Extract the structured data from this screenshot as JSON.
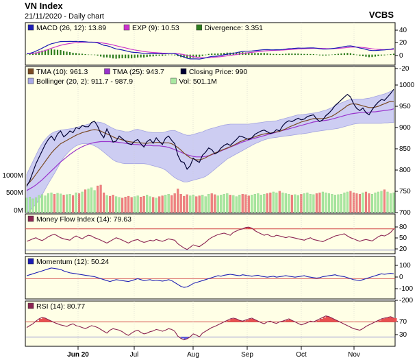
{
  "header": {
    "title": "VN Index",
    "subtitle": "21/11/2020 - Daily chart",
    "brand": "VCBS"
  },
  "chart_data": {
    "type": "line",
    "x_labels": [
      "Jun 20",
      "Jul",
      "Aug",
      "Sep",
      "Oct",
      "Nov"
    ],
    "panels": [
      {
        "id": "macd",
        "legend": [
          {
            "label": "MACD (26, 12): 13.89",
            "color": "#1c1cb4"
          },
          {
            "label": "EXP (9): 10.53",
            "color": "#cc33cc"
          },
          {
            "label": "Divergence: 3.351",
            "color": "#2e7d1e"
          }
        ],
        "yticks": [
          "40",
          "20",
          "0",
          "-20"
        ],
        "ylim": [
          -25,
          45
        ]
      },
      {
        "id": "price",
        "legend": [
          {
            "label": "TMA (10): 961.3",
            "color": "#7a4a22"
          },
          {
            "label": "TMA (25): 943.7",
            "color": "#9933cc"
          },
          {
            "label": "Closing Price: 990",
            "color": "#000033"
          },
          {
            "label": "Bollinger (20, 2): 911.7 - 987.9",
            "color": "#a8a8e8"
          },
          {
            "label": "Vol: 501.1M",
            "color": "#a8e8a0"
          }
        ],
        "yticks": [
          "1000",
          "950",
          "900",
          "850",
          "800",
          "750",
          "700"
        ],
        "vol_ticks": [
          "1000M",
          "500M",
          "0M"
        ],
        "ylim": [
          700,
          1000
        ],
        "close": [
          762,
          775,
          795,
          815,
          830,
          845,
          860,
          872,
          880,
          870,
          885,
          892,
          878,
          884,
          892,
          888,
          900,
          897,
          905,
          902,
          902,
          912,
          915,
          903,
          886,
          876,
          897,
          882,
          866,
          868,
          880,
          874,
          868,
          862,
          860,
          868,
          872,
          862,
          854,
          867,
          872,
          863,
          876,
          867,
          860,
          875,
          880,
          870,
          862,
          835,
          820,
          818,
          802,
          810,
          828,
          822,
          818,
          835,
          842,
          852,
          848,
          838,
          842,
          852,
          858,
          862,
          858,
          865,
          872,
          880,
          878,
          875,
          872,
          876,
          884,
          888,
          892,
          894,
          890,
          886,
          888,
          895,
          892,
          904,
          912,
          916,
          914,
          918,
          922,
          918,
          920,
          926,
          928,
          930,
          920,
          914,
          918,
          928,
          934,
          942,
          952,
          958,
          965,
          972,
          978,
          972,
          956,
          945,
          940,
          946,
          935,
          930,
          942,
          952,
          960,
          966,
          964,
          972,
          980,
          990
        ],
        "tma10": [
          765,
          772,
          780,
          790,
          800,
          810,
          820,
          830,
          840,
          848,
          855,
          862,
          866,
          870,
          874,
          878,
          882,
          885,
          888,
          890,
          892,
          894,
          895,
          894,
          892,
          888,
          885,
          882,
          878,
          875,
          873,
          871,
          869,
          867,
          866,
          865,
          864,
          864,
          863,
          863,
          864,
          864,
          865,
          865,
          864,
          864,
          864,
          862,
          858,
          853,
          847,
          840,
          834,
          829,
          826,
          824,
          824,
          826,
          829,
          833,
          837,
          840,
          843,
          846,
          849,
          852,
          855,
          858,
          862,
          866,
          869,
          872,
          874,
          876,
          878,
          881,
          883,
          885,
          886,
          887,
          888,
          890,
          891,
          894,
          897,
          901,
          904,
          907,
          910,
          913,
          915,
          917,
          919,
          921,
          921,
          921,
          921,
          922,
          924,
          927,
          931,
          936,
          941,
          946,
          952,
          955,
          956,
          955,
          953,
          951,
          949,
          947,
          947,
          948,
          950,
          953,
          956,
          959,
          962,
          961
        ],
        "tma25": [
          752,
          756,
          760,
          765,
          771,
          777,
          784,
          791,
          798,
          805,
          812,
          819,
          825,
          831,
          837,
          842,
          847,
          851,
          855,
          858,
          861,
          863,
          865,
          866,
          867,
          867,
          867,
          867,
          866,
          866,
          865,
          864,
          863,
          862,
          861,
          860,
          860,
          859,
          858,
          858,
          858,
          857,
          857,
          857,
          856,
          855,
          853,
          851,
          848,
          845,
          842,
          839,
          836,
          834,
          832,
          831,
          831,
          831,
          832,
          834,
          836,
          839,
          842,
          845,
          848,
          851,
          854,
          857,
          860,
          863,
          866,
          868,
          871,
          873,
          875,
          877,
          879,
          881,
          883,
          885,
          887,
          889,
          891,
          893,
          895,
          897,
          899,
          901,
          903,
          905,
          907,
          909,
          911,
          913,
          914,
          915,
          916,
          917,
          918,
          920,
          922,
          924,
          926,
          928,
          930,
          932,
          933,
          934,
          935,
          936,
          936,
          936,
          937,
          937,
          938,
          939,
          940,
          941,
          942,
          944
        ],
        "boll_upper": [
          790,
          805,
          820,
          835,
          850,
          862,
          872,
          880,
          886,
          890,
          892,
          894,
          895,
          896,
          897,
          898,
          900,
          902,
          904,
          906,
          908,
          910,
          912,
          913,
          912,
          910,
          906,
          902,
          898,
          895,
          893,
          892,
          890,
          890,
          892,
          895,
          896,
          894,
          892,
          890,
          889,
          888,
          888,
          888,
          888,
          890,
          892,
          893,
          893,
          890,
          887,
          884,
          882,
          882,
          884,
          886,
          888,
          890,
          893,
          896,
          898,
          900,
          902,
          904,
          906,
          907,
          908,
          908,
          908,
          908,
          908,
          908,
          908,
          909,
          910,
          911,
          912,
          913,
          914,
          914,
          915,
          916,
          918,
          920,
          922,
          924,
          926,
          928,
          930,
          930,
          931,
          932,
          933,
          934,
          935,
          937,
          939,
          941,
          944,
          947,
          951,
          955,
          958,
          961,
          964,
          966,
          967,
          967,
          967,
          967,
          968,
          969,
          971,
          973,
          975,
          977,
          979,
          982,
          985,
          988
        ],
        "boll_lower": [
          700,
          705,
          712,
          720,
          730,
          742,
          755,
          768,
          780,
          792,
          805,
          818,
          830,
          838,
          846,
          852,
          857,
          860,
          862,
          862,
          862,
          860,
          857,
          853,
          848,
          842,
          836,
          830,
          824,
          820,
          818,
          816,
          815,
          815,
          815,
          815,
          815,
          815,
          815,
          814,
          812,
          810,
          808,
          806,
          804,
          800,
          794,
          788,
          782,
          778,
          775,
          772,
          772,
          774,
          776,
          778,
          780,
          782,
          785,
          790,
          796,
          802,
          808,
          814,
          820,
          826,
          830,
          834,
          838,
          842,
          846,
          850,
          854,
          858,
          862,
          865,
          868,
          871,
          873,
          875,
          876,
          877,
          878,
          879,
          880,
          881,
          882,
          883,
          884,
          885,
          886,
          887,
          888,
          890,
          891,
          892,
          893,
          894,
          895,
          896,
          897,
          898,
          900,
          902,
          904,
          906,
          908,
          909,
          910,
          910,
          910,
          910,
          910,
          910,
          910,
          910,
          911,
          911,
          912,
          912
        ],
        "volume": [
          380,
          410,
          360,
          390,
          450,
          470,
          440,
          500,
          520,
          480,
          510,
          490,
          460,
          470,
          480,
          450,
          520,
          500,
          540,
          600,
          620,
          650,
          580,
          700,
          720,
          520,
          450,
          430,
          460,
          420,
          400,
          380,
          410,
          430,
          400,
          420,
          440,
          410,
          430,
          460,
          420,
          400,
          380,
          420,
          440,
          460,
          480,
          450,
          500,
          620,
          480,
          430,
          470,
          440,
          460,
          420,
          440,
          460,
          420,
          480,
          500,
          470,
          440,
          460,
          480,
          500,
          460,
          450,
          420,
          460,
          480,
          470,
          440,
          460,
          480,
          500,
          460,
          480,
          500,
          520,
          540,
          520,
          560,
          520,
          500,
          480,
          460,
          470,
          450,
          480,
          500,
          520,
          480,
          470,
          500,
          520,
          540,
          520,
          500,
          480,
          460,
          470,
          480,
          520,
          540,
          560,
          520,
          500,
          480,
          520,
          540,
          500,
          480,
          520,
          540,
          560,
          600,
          540,
          500,
          520
        ],
        "volume_ylim": [
          0,
          1400
        ]
      },
      {
        "id": "mfi",
        "legend": [
          {
            "label": "Money Flow Index (14): 79.63",
            "color": "#8b2452"
          }
        ],
        "yticks": [
          "80",
          "50",
          "20"
        ],
        "ylim": [
          10,
          95
        ],
        "overbought": 80,
        "values": [
          45,
          48,
          52,
          55,
          50,
          47,
          52,
          58,
          62,
          65,
          60,
          55,
          52,
          50,
          48,
          55,
          60,
          56,
          52,
          58,
          62,
          60,
          55,
          52,
          48,
          44,
          40,
          45,
          50,
          55,
          52,
          48,
          44,
          40,
          45,
          48,
          50,
          45,
          42,
          44,
          48,
          46,
          50,
          47,
          45,
          48,
          52,
          50,
          48,
          38,
          32,
          26,
          22,
          28,
          35,
          32,
          30,
          36,
          42,
          50,
          56,
          60,
          64,
          66,
          68,
          65,
          62,
          70,
          74,
          78,
          80,
          84,
          85,
          82,
          75,
          70,
          66,
          62,
          65,
          60,
          58,
          62,
          60,
          58,
          55,
          58,
          56,
          54,
          52,
          50,
          48,
          52,
          55,
          50,
          48,
          46,
          44,
          48,
          52,
          56,
          60,
          62,
          64,
          66,
          60,
          55,
          52,
          48,
          45,
          48,
          50,
          48,
          46,
          52,
          58,
          62,
          60,
          64,
          70,
          80
        ]
      },
      {
        "id": "momentum",
        "legend": [
          {
            "label": "Momentum (12): 50.24",
            "color": "#1c1cb4"
          }
        ],
        "yticks": [
          "100",
          "0",
          "-100",
          "-200"
        ],
        "ylim": [
          -210,
          130
        ],
        "values": [
          30,
          40,
          50,
          60,
          70,
          80,
          90,
          100,
          110,
          105,
          100,
          95,
          80,
          70,
          60,
          55,
          50,
          45,
          40,
          35,
          30,
          25,
          20,
          10,
          0,
          -10,
          -20,
          -30,
          -20,
          -10,
          -15,
          -20,
          -25,
          -30,
          -20,
          -10,
          0,
          -10,
          -20,
          -15,
          -10,
          -20,
          -15,
          -20,
          -25,
          -20,
          -10,
          -20,
          -40,
          -60,
          -80,
          -90,
          -85,
          -70,
          -50,
          -40,
          -30,
          -20,
          -10,
          0,
          10,
          20,
          30,
          25,
          35,
          40,
          45,
          40,
          35,
          30,
          40,
          35,
          30,
          25,
          30,
          35,
          25,
          20,
          15,
          20,
          25,
          15,
          20,
          25,
          30,
          25,
          20,
          15,
          20,
          25,
          30,
          20,
          15,
          10,
          5,
          10,
          20,
          25,
          30,
          35,
          40,
          30,
          25,
          20,
          10,
          0,
          -10,
          -15,
          -20,
          -10,
          0,
          10,
          20,
          30,
          40,
          50,
          45,
          50,
          55,
          50
        ],
        "zero_line": 0
      },
      {
        "id": "rsi",
        "legend": [
          {
            "label": "RSI (14): 80.77",
            "color": "#8b2452"
          }
        ],
        "yticks": [
          "70",
          "30"
        ],
        "ylim": [
          5,
          100
        ],
        "overbought": 70,
        "oversold": 30,
        "values": [
          55,
          60,
          65,
          72,
          78,
          82,
          80,
          76,
          72,
          68,
          65,
          62,
          60,
          58,
          62,
          65,
          60,
          58,
          55,
          52,
          56,
          60,
          58,
          55,
          50,
          45,
          40,
          48,
          52,
          50,
          48,
          44,
          38,
          34,
          40,
          45,
          48,
          42,
          38,
          40,
          44,
          46,
          50,
          48,
          45,
          48,
          52,
          50,
          45,
          32,
          26,
          22,
          25,
          30,
          38,
          35,
          30,
          40,
          45,
          50,
          55,
          58,
          62,
          66,
          70,
          74,
          78,
          80,
          78,
          74,
          72,
          75,
          78,
          80,
          76,
          72,
          68,
          65,
          70,
          72,
          68,
          66,
          70,
          72,
          75,
          78,
          74,
          70,
          66,
          62,
          65,
          68,
          72,
          70,
          74,
          78,
          82,
          86,
          84,
          80,
          76,
          72,
          68,
          64,
          60,
          56,
          52,
          50,
          48,
          52,
          58,
          62,
          66,
          70,
          74,
          78,
          80,
          82,
          84,
          80
        ]
      }
    ]
  }
}
